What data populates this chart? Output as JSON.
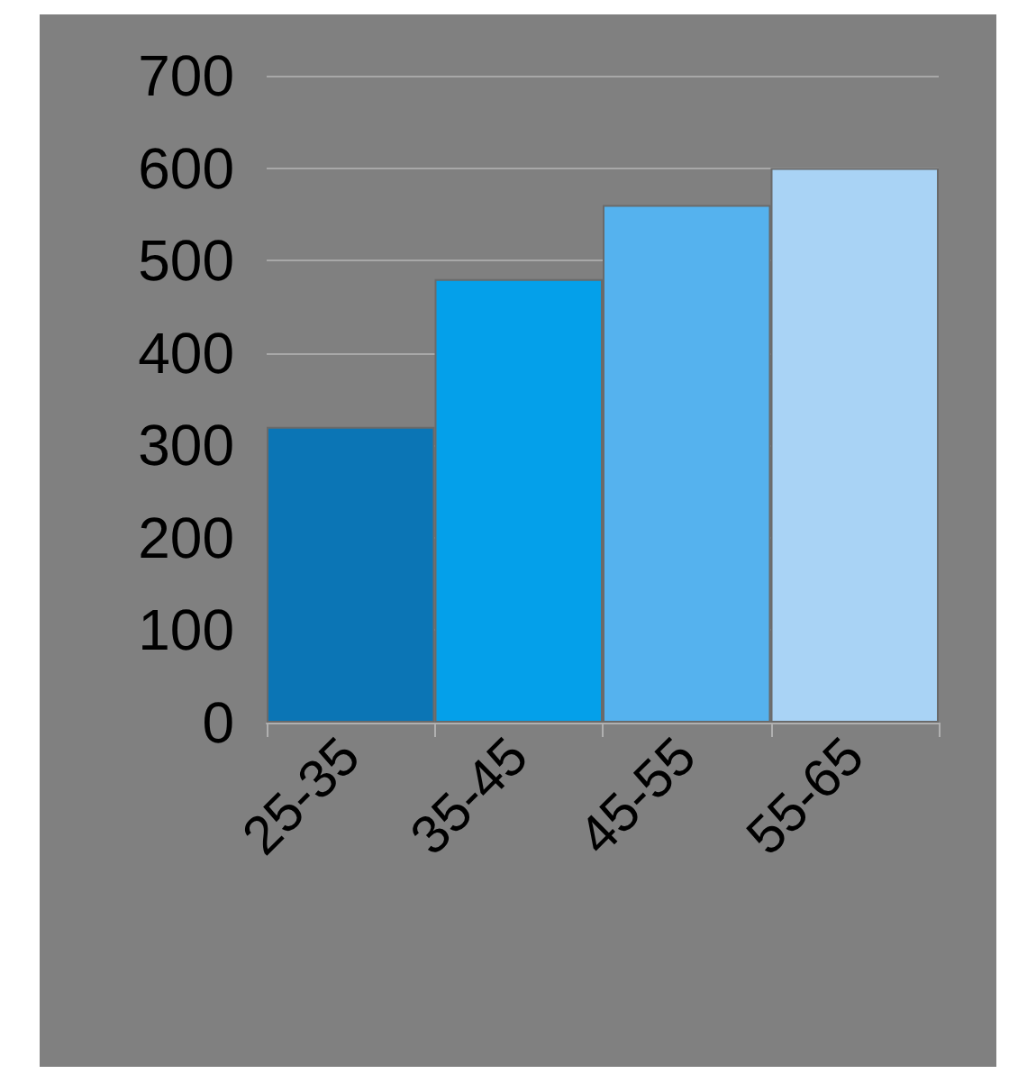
{
  "chart_data": {
    "type": "bar",
    "categories": [
      "25-35",
      "35-45",
      "45-55",
      "55-65"
    ],
    "values": [
      320,
      480,
      560,
      600
    ],
    "colors": [
      "#0b75b5",
      "#04a0ea",
      "#55b2ee",
      "#a9d3f5"
    ],
    "ylim": [
      0,
      700
    ],
    "yticks": [
      0,
      100,
      200,
      300,
      400,
      500,
      600,
      700
    ],
    "grid": "y"
  }
}
